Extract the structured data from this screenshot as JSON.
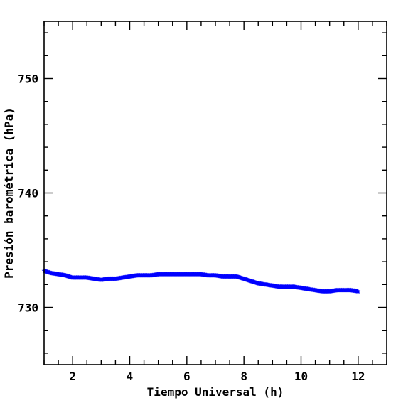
{
  "chart_data": {
    "type": "scatter",
    "title": "",
    "xlabel": "Tiempo Universal (h)",
    "ylabel": "Presión barométrica (hPa)",
    "xlim": [
      1,
      13
    ],
    "ylim": [
      725,
      755
    ],
    "xticks": [
      2,
      4,
      6,
      8,
      10,
      12
    ],
    "xtick_labels": [
      "2",
      "4",
      "6",
      "8",
      "10",
      "12"
    ],
    "yticks": [
      730,
      740,
      750
    ],
    "ytick_labels": [
      "730",
      "740",
      "750"
    ],
    "grid": false,
    "legend": "none",
    "series": [
      {
        "color": "#0000ff",
        "marker": "star",
        "x": [
          1.0,
          1.25,
          1.5,
          1.75,
          2.0,
          2.25,
          2.5,
          2.75,
          3.0,
          3.25,
          3.5,
          3.75,
          4.0,
          4.25,
          4.5,
          4.75,
          5.0,
          5.25,
          5.5,
          5.75,
          6.0,
          6.25,
          6.5,
          6.75,
          7.0,
          7.25,
          7.5,
          7.75,
          8.0,
          8.25,
          8.5,
          8.75,
          9.0,
          9.25,
          9.5,
          9.75,
          10.0,
          10.25,
          10.5,
          10.75,
          11.0,
          11.25,
          11.5,
          11.75,
          12.0
        ],
        "y": [
          733.2,
          733.0,
          732.9,
          732.8,
          732.6,
          732.6,
          732.6,
          732.5,
          732.4,
          732.5,
          732.5,
          732.6,
          732.7,
          732.8,
          732.8,
          732.8,
          732.9,
          732.9,
          732.9,
          732.9,
          732.9,
          732.9,
          732.9,
          732.8,
          732.8,
          732.7,
          732.7,
          732.7,
          732.5,
          732.3,
          732.1,
          732.0,
          731.9,
          731.8,
          731.8,
          731.8,
          731.7,
          731.6,
          731.5,
          731.4,
          731.4,
          731.5,
          731.5,
          731.5,
          731.4
        ]
      }
    ]
  }
}
